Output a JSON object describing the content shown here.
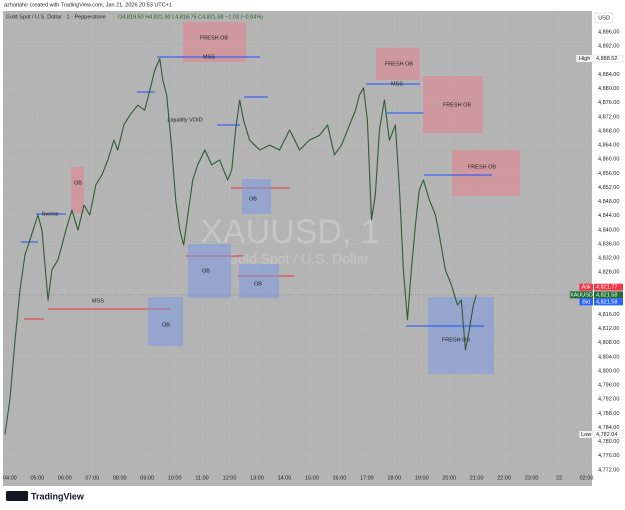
{
  "chart_data": {
    "type": "line",
    "credit": "azharlahir created with TradingView.com, Jan 21, 2026 20:53 UTC+1",
    "title": "Gold Spot / U.S. Dollar · 1 · Pepperstone",
    "ohlc": "O4,819.50 H4,821.90 L4,818.75 C4,821.58 −2.03 (−0.04%)",
    "watermark": "XAUUSD, 1",
    "watermark_subtitle": "Gold Spot / U.S. Dollar",
    "currency": "USD",
    "footer": "TradingView",
    "x": [
      3.82,
      4.0,
      4.19,
      4.37,
      4.55,
      4.73,
      5.02,
      5.17,
      5.39,
      5.53,
      5.75,
      5.9,
      6.04,
      6.26,
      6.48,
      6.7,
      6.91,
      7.13,
      7.35,
      7.57,
      7.79,
      7.93,
      8.15,
      8.37,
      8.66,
      8.91,
      9.1,
      9.28,
      9.46,
      9.57,
      9.71,
      9.9,
      10.04,
      10.19,
      10.33,
      10.48,
      10.66,
      10.84,
      11.1,
      11.35,
      11.64,
      11.93,
      12.08,
      12.22,
      12.37,
      12.51,
      12.73,
      13.1,
      13.46,
      13.82,
      14.19,
      14.55,
      14.91,
      15.28,
      15.57,
      15.82,
      16.08,
      16.37,
      16.59,
      16.73,
      16.88,
      17.02,
      17.17,
      17.31,
      17.46,
      17.64,
      17.82,
      18.04,
      18.19,
      18.33,
      18.48,
      18.62,
      18.77,
      18.91,
      19.06,
      19.28,
      19.5,
      19.64,
      19.86,
      20.08,
      20.3,
      20.44,
      20.59,
      20.73,
      20.88,
      20.99
    ],
    "series": [
      {
        "name": "XAUUSD",
        "color": "#2f5d34",
        "values": [
          4782.0,
          4791.8,
          4808.8,
          4823.0,
          4832.9,
          4837.1,
          4844.2,
          4839.9,
          4820.1,
          4828.6,
          4831.5,
          4835.7,
          4839.9,
          4845.6,
          4839.9,
          4847.0,
          4844.2,
          4852.7,
          4855.5,
          4859.8,
          4865.4,
          4862.6,
          4869.7,
          4872.5,
          4875.3,
          4873.9,
          4879.6,
          4885.3,
          4888.5,
          4882.4,
          4878.2,
          4862.6,
          4848.4,
          4839.9,
          4835.7,
          4844.2,
          4854.1,
          4858.4,
          4862.6,
          4858.4,
          4859.8,
          4854.1,
          4856.9,
          4868.3,
          4876.8,
          4871.1,
          4865.4,
          4862.6,
          4864.0,
          4862.6,
          4868.3,
          4862.6,
          4865.4,
          4866.8,
          4869.7,
          4861.2,
          4864.0,
          4869.7,
          4873.9,
          4878.2,
          4880.2,
          4871.1,
          4842.8,
          4849.9,
          4868.3,
          4876.8,
          4865.4,
          4869.7,
          4851.3,
          4828.6,
          4814.5,
          4828.6,
          4841.4,
          4851.3,
          4854.1,
          4848.4,
          4844.2,
          4838.5,
          4828.6,
          4824.4,
          4818.7,
          4820.1,
          4806.0,
          4811.6,
          4818.7,
          4821.58
        ]
      }
    ],
    "xlim": [
      3.75,
      25.2
    ],
    "xticks": [
      {
        "value": 4,
        "label": "04:00"
      },
      {
        "value": 5,
        "label": "05:00"
      },
      {
        "value": 6,
        "label": "06:00"
      },
      {
        "value": 7,
        "label": "07:00"
      },
      {
        "value": 8,
        "label": "08:00"
      },
      {
        "value": 9,
        "label": "09:00"
      },
      {
        "value": 10,
        "label": "10:00"
      },
      {
        "value": 11,
        "label": "11:00"
      },
      {
        "value": 12,
        "label": "12:00"
      },
      {
        "value": 13,
        "label": "13:00"
      },
      {
        "value": 14,
        "label": "14:00"
      },
      {
        "value": 15,
        "label": "15:00"
      },
      {
        "value": 16,
        "label": "16:00"
      },
      {
        "value": 17,
        "label": "17:00"
      },
      {
        "value": 18,
        "label": "18:00"
      },
      {
        "value": 19,
        "label": "19:00"
      },
      {
        "value": 20,
        "label": "20:00"
      },
      {
        "value": 21,
        "label": "21:00"
      },
      {
        "value": 22,
        "label": "22:00"
      },
      {
        "value": 23,
        "label": "23:00"
      },
      {
        "value": 24,
        "label": "22"
      },
      {
        "value": 25,
        "label": "02:00"
      }
    ],
    "ylim": [
      4771.4,
      4901.7
    ],
    "yticks": [
      {
        "value": 4896,
        "label": "4,896.00"
      },
      {
        "value": 4892,
        "label": "4,892.00"
      },
      {
        "value": 4884,
        "label": "4,884.00"
      },
      {
        "value": 4880,
        "label": "4,880.00"
      },
      {
        "value": 4876,
        "label": "4,876.00"
      },
      {
        "value": 4872,
        "label": "4,872.00"
      },
      {
        "value": 4868,
        "label": "4,868.00"
      },
      {
        "value": 4864,
        "label": "4,864.00"
      },
      {
        "value": 4860,
        "label": "4,860.00"
      },
      {
        "value": 4856,
        "label": "4,856.00"
      },
      {
        "value": 4852,
        "label": "4,852.00"
      },
      {
        "value": 4848,
        "label": "4,848.00"
      },
      {
        "value": 4844,
        "label": "4,844.00"
      },
      {
        "value": 4840,
        "label": "4,840.00"
      },
      {
        "value": 4836,
        "label": "4,836.00"
      },
      {
        "value": 4832,
        "label": "4,832.00"
      },
      {
        "value": 4828,
        "label": "4,828.00"
      },
      {
        "value": 4824,
        "label": "4,824.00"
      },
      {
        "value": 4816,
        "label": "4,816.00"
      },
      {
        "value": 4812,
        "label": "4,812.00"
      },
      {
        "value": 4808,
        "label": "4,808.00"
      },
      {
        "value": 4804,
        "label": "4,804.00"
      },
      {
        "value": 4800,
        "label": "4,800.00"
      },
      {
        "value": 4796,
        "label": "4,796.00"
      },
      {
        "value": 4792,
        "label": "4,792.00"
      },
      {
        "value": 4788,
        "label": "4,788.00"
      },
      {
        "value": 4784,
        "label": "4,784.00"
      },
      {
        "value": 4780,
        "label": "4,780.00"
      },
      {
        "value": 4776,
        "label": "4,776.00"
      },
      {
        "value": 4772,
        "label": "4,772.00"
      }
    ],
    "markers": [
      {
        "name": "High",
        "value": 4888.52,
        "value_label": "4,888.52",
        "color": "#ffffff"
      },
      {
        "name": "Low",
        "value": 4782.04,
        "value_label": "4,782.04",
        "color": "#ffffff"
      },
      {
        "name": "Ask",
        "value": 4821.77,
        "value_label": "4,821.77",
        "color": "#f23645"
      },
      {
        "name": "XAUUSD",
        "value": 4821.58,
        "value_label": "4,821.58",
        "color": "#1e6b35"
      },
      {
        "name": "Bid",
        "value": 4821.58,
        "value_label": "4,821.58",
        "color": "#2962ff"
      }
    ],
    "annotations": [
      {
        "text": "FRESH OB"
      },
      {
        "text": "MSS"
      },
      {
        "text": "FRESH OB"
      },
      {
        "text": "MSS"
      },
      {
        "text": "FRESH OB"
      },
      {
        "text": "FRESH OB"
      },
      {
        "text": "OB"
      },
      {
        "text": "Sweep"
      },
      {
        "text": "Liquidity VOID"
      },
      {
        "text": "OB"
      },
      {
        "text": "OB"
      },
      {
        "text": "OB"
      },
      {
        "text": "MSS"
      },
      {
        "text": "OB"
      },
      {
        "text": "FRESH OB"
      }
    ]
  }
}
